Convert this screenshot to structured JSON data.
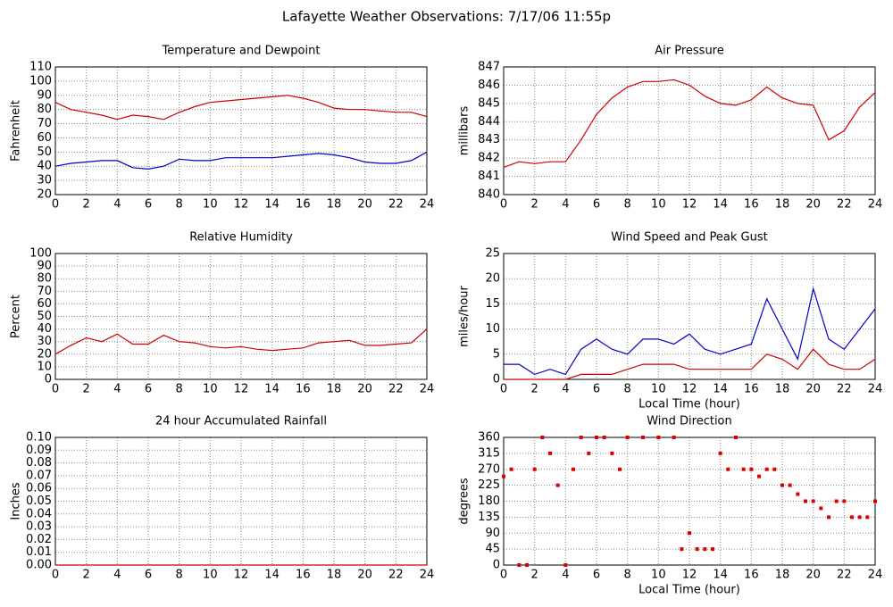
{
  "title": "Lafayette Weather Observations: 7/17/06 11:55p",
  "chart_data": [
    {
      "type": "line",
      "title": "Temperature and Dewpoint",
      "ylabel": "Fahrenheit",
      "x": [
        0,
        1,
        2,
        3,
        4,
        5,
        6,
        7,
        8,
        9,
        10,
        11,
        12,
        13,
        14,
        15,
        16,
        17,
        18,
        19,
        20,
        21,
        22,
        23,
        24
      ],
      "series": [
        {
          "color": "#cc0000",
          "values": [
            85,
            80,
            78,
            76,
            73,
            76,
            75,
            73,
            78,
            82,
            85,
            86,
            87,
            88,
            89,
            90,
            88,
            85,
            81,
            80,
            80,
            79,
            78,
            78,
            75
          ]
        },
        {
          "color": "#0000cc",
          "values": [
            40,
            42,
            43,
            44,
            44,
            39,
            38,
            40,
            45,
            44,
            44,
            46,
            46,
            46,
            46,
            47,
            48,
            49,
            48,
            46,
            43,
            42,
            42,
            44,
            50
          ]
        }
      ],
      "xlim": [
        0,
        24
      ],
      "xticks": [
        0,
        2,
        4,
        6,
        8,
        10,
        12,
        14,
        16,
        18,
        20,
        22,
        24
      ],
      "ylim": [
        20,
        110
      ],
      "yticks": [
        20,
        30,
        40,
        50,
        60,
        70,
        80,
        90,
        100,
        110
      ],
      "grid": true
    },
    {
      "type": "line",
      "title": "Air Pressure",
      "ylabel": "millibars",
      "x": [
        0,
        1,
        2,
        3,
        4,
        5,
        6,
        7,
        8,
        9,
        10,
        11,
        12,
        13,
        14,
        15,
        16,
        17,
        18,
        19,
        20,
        21,
        22,
        23,
        24
      ],
      "series": [
        {
          "color": "#cc0000",
          "values": [
            841.5,
            841.8,
            841.7,
            841.8,
            841.8,
            843.0,
            844.4,
            845.3,
            845.9,
            846.2,
            846.2,
            846.3,
            846.0,
            845.4,
            845.0,
            844.9,
            845.2,
            845.9,
            845.3,
            845.0,
            844.9,
            843.0,
            843.5,
            844.8,
            845.6
          ]
        }
      ],
      "xlim": [
        0,
        24
      ],
      "xticks": [
        0,
        2,
        4,
        6,
        8,
        10,
        12,
        14,
        16,
        18,
        20,
        22,
        24
      ],
      "ylim": [
        840,
        847
      ],
      "yticks": [
        840,
        841,
        842,
        843,
        844,
        845,
        846,
        847
      ],
      "grid": true
    },
    {
      "type": "line",
      "title": "Relative Humidity",
      "ylabel": "Percent",
      "x": [
        0,
        1,
        2,
        3,
        4,
        5,
        6,
        7,
        8,
        9,
        10,
        11,
        12,
        13,
        14,
        15,
        16,
        17,
        18,
        19,
        20,
        21,
        22,
        23,
        24
      ],
      "series": [
        {
          "color": "#cc0000",
          "values": [
            20,
            27,
            33,
            30,
            36,
            28,
            28,
            35,
            30,
            29,
            26,
            25,
            26,
            24,
            23,
            24,
            25,
            29,
            30,
            31,
            27,
            27,
            28,
            29,
            40
          ]
        }
      ],
      "xlim": [
        0,
        24
      ],
      "xticks": [
        0,
        2,
        4,
        6,
        8,
        10,
        12,
        14,
        16,
        18,
        20,
        22,
        24
      ],
      "ylim": [
        0,
        100
      ],
      "yticks": [
        0,
        10,
        20,
        30,
        40,
        50,
        60,
        70,
        80,
        90,
        100
      ],
      "grid": true
    },
    {
      "type": "line",
      "title": "Wind Speed and Peak Gust",
      "ylabel": "miles/hour",
      "xlabel": "Local Time (hour)",
      "x": [
        0,
        1,
        2,
        3,
        4,
        5,
        6,
        7,
        8,
        9,
        10,
        11,
        12,
        13,
        14,
        15,
        16,
        17,
        18,
        19,
        20,
        21,
        22,
        23,
        24
      ],
      "series": [
        {
          "color": "#0000cc",
          "values": [
            3,
            3,
            1,
            2,
            1,
            6,
            8,
            6,
            5,
            8,
            8,
            7,
            9,
            6,
            5,
            6,
            7,
            16,
            10,
            4,
            18,
            8,
            6,
            10,
            14
          ]
        },
        {
          "color": "#cc0000",
          "values": [
            0,
            0,
            0,
            0,
            0,
            1,
            1,
            1,
            2,
            3,
            3,
            3,
            2,
            2,
            2,
            2,
            2,
            5,
            4,
            2,
            6,
            3,
            2,
            2,
            4
          ]
        }
      ],
      "xlim": [
        0,
        24
      ],
      "xticks": [
        0,
        2,
        4,
        6,
        8,
        10,
        12,
        14,
        16,
        18,
        20,
        22,
        24
      ],
      "ylim": [
        0,
        25
      ],
      "yticks": [
        0,
        5,
        10,
        15,
        20,
        25
      ],
      "grid": true
    },
    {
      "type": "line",
      "title": "24 hour Accumulated Rainfall",
      "ylabel": "Inches",
      "x": [
        0,
        1,
        2,
        3,
        4,
        5,
        6,
        7,
        8,
        9,
        10,
        11,
        12,
        13,
        14,
        15,
        16,
        17,
        18,
        19,
        20,
        21,
        22,
        23,
        24
      ],
      "series": [
        {
          "color": "#cc0000",
          "values": [
            0,
            0,
            0,
            0,
            0,
            0,
            0,
            0,
            0,
            0,
            0,
            0,
            0,
            0,
            0,
            0,
            0,
            0,
            0,
            0,
            0,
            0,
            0,
            0,
            0
          ]
        }
      ],
      "xlim": [
        0,
        24
      ],
      "xticks": [
        0,
        2,
        4,
        6,
        8,
        10,
        12,
        14,
        16,
        18,
        20,
        22,
        24
      ],
      "ylim": [
        0,
        0.1
      ],
      "yticks": [
        {
          "value": 0,
          "label": "0.00"
        },
        {
          "value": 0.01,
          "label": "0.01"
        },
        {
          "value": 0.02,
          "label": "0.02"
        },
        {
          "value": 0.03,
          "label": "0.03"
        },
        {
          "value": 0.04,
          "label": "0.04"
        },
        {
          "value": 0.05,
          "label": "0.05"
        },
        {
          "value": 0.06,
          "label": "0.06"
        },
        {
          "value": 0.07,
          "label": "0.07"
        },
        {
          "value": 0.08,
          "label": "0.08"
        },
        {
          "value": 0.09,
          "label": "0.09"
        },
        {
          "value": 0.1,
          "label": "0.10"
        }
      ],
      "grid": true
    },
    {
      "type": "scatter",
      "title": "Wind Direction",
      "ylabel": "degrees",
      "xlabel": "Local Time (hour)",
      "x": [
        0,
        0.5,
        1,
        1.5,
        2,
        2.5,
        3,
        3.5,
        4,
        4.5,
        5,
        5.5,
        6,
        6.5,
        7,
        7.5,
        8,
        9,
        10,
        11,
        11.5,
        12,
        12.5,
        13,
        13.5,
        14,
        14.5,
        15,
        15.5,
        16,
        16.5,
        17,
        17.5,
        18,
        18.5,
        19,
        19.5,
        20,
        20.5,
        21,
        21.5,
        22,
        22.5,
        23,
        23.5,
        24
      ],
      "series": [
        {
          "color": "#dd0000",
          "values": [
            250,
            270,
            0,
            0,
            270,
            360,
            315,
            225,
            0,
            270,
            360,
            315,
            360,
            360,
            315,
            270,
            360,
            360,
            360,
            360,
            45,
            90,
            45,
            45,
            45,
            315,
            270,
            360,
            270,
            270,
            250,
            270,
            270,
            225,
            225,
            200,
            180,
            180,
            160,
            135,
            180,
            180,
            135,
            135,
            135,
            180
          ]
        }
      ],
      "xlim": [
        0,
        24
      ],
      "xticks": [
        0,
        2,
        4,
        6,
        8,
        10,
        12,
        14,
        16,
        18,
        20,
        22,
        24
      ],
      "ylim": [
        0,
        360
      ],
      "yticks": [
        0,
        45,
        90,
        135,
        180,
        225,
        270,
        315,
        360
      ],
      "grid": true
    }
  ]
}
